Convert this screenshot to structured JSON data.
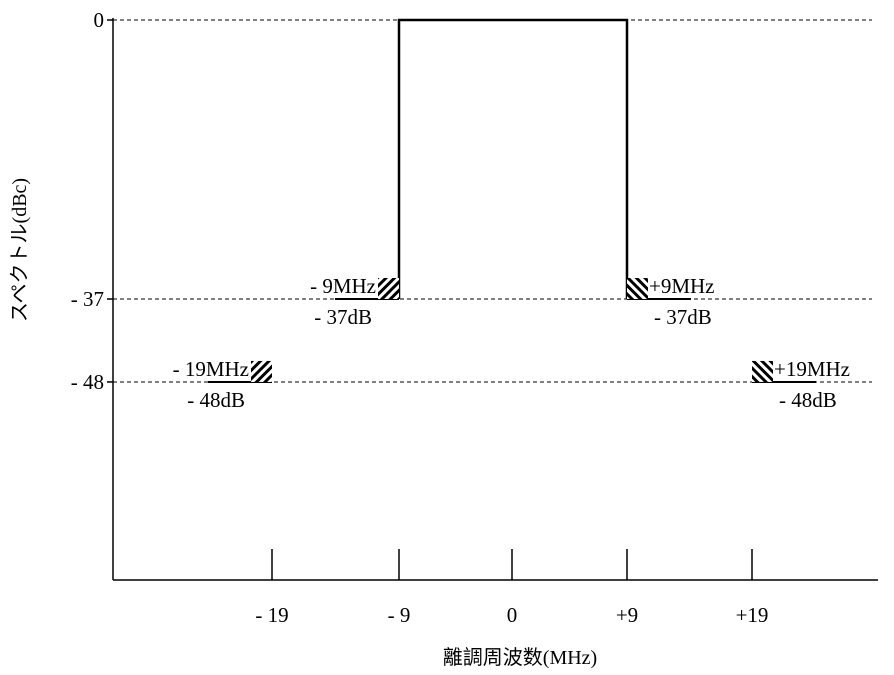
{
  "chart_data": {
    "type": "line",
    "xlabel": "離調周波数(MHz)",
    "ylabel": "スペクトル(dBc)",
    "x_ticks": [
      {
        "value": -19,
        "label": "- 19"
      },
      {
        "value": -9,
        "label": "- 9"
      },
      {
        "value": 0,
        "label": "0"
      },
      {
        "value": 9,
        "label": "+9"
      },
      {
        "value": 19,
        "label": "+19"
      }
    ],
    "y_ticks": [
      {
        "value": 0,
        "label": "0"
      },
      {
        "value": -37,
        "label": "- 37"
      },
      {
        "value": -48,
        "label": "- 48"
      }
    ],
    "reference_lines_dbc": [
      0,
      -37,
      -48
    ],
    "spectrum_mask": [
      {
        "x": -9,
        "y": -37
      },
      {
        "x": -9,
        "y": 0
      },
      {
        "x": 9,
        "y": 0
      },
      {
        "x": 9,
        "y": -37
      }
    ],
    "limit_points": [
      {
        "x": -19,
        "y": -48,
        "freq_label": "- 19MHz",
        "level_label": "- 48dB",
        "side": "left"
      },
      {
        "x": -9,
        "y": -37,
        "freq_label": "- 9MHz",
        "level_label": "- 37dB",
        "side": "left"
      },
      {
        "x": 9,
        "y": -37,
        "freq_label": "+9MHz",
        "level_label": "- 37dB",
        "side": "right"
      },
      {
        "x": 19,
        "y": -48,
        "freq_label": "+19MHz",
        "level_label": "- 48dB",
        "side": "right"
      }
    ]
  }
}
